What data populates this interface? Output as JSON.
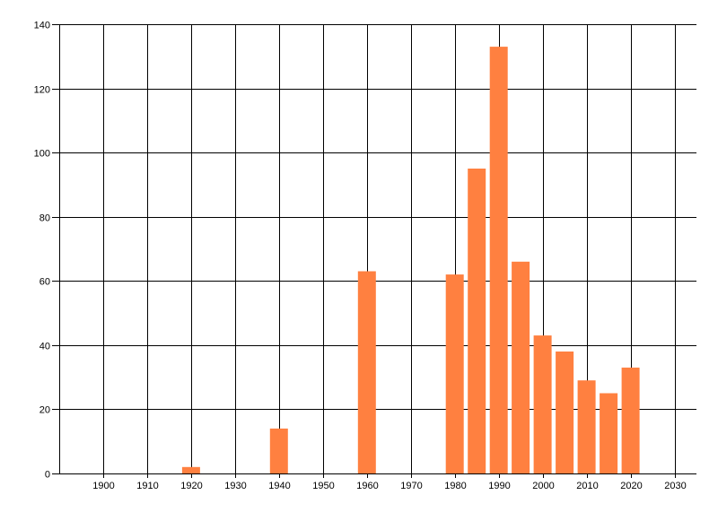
{
  "chart_data": {
    "type": "bar",
    "title": "",
    "xlabel": "",
    "ylabel": "",
    "x": [
      1920,
      1940,
      1960,
      1980,
      1985,
      1990,
      1995,
      2000,
      2005,
      2010,
      2015,
      2020
    ],
    "values": [
      2,
      14,
      63,
      62,
      95,
      133,
      66,
      43,
      38,
      29,
      25,
      33
    ],
    "xlim": [
      1890,
      2035
    ],
    "ylim": [
      0,
      140
    ],
    "x_ticks": [
      1900,
      1910,
      1920,
      1930,
      1940,
      1950,
      1960,
      1970,
      1980,
      1990,
      2000,
      2010,
      2020,
      2030
    ],
    "y_ticks": [
      0,
      20,
      40,
      60,
      80,
      100,
      120,
      140
    ],
    "grid": true,
    "legend": "none",
    "bar_color": "#FF8040",
    "grid_color": "#000000"
  }
}
